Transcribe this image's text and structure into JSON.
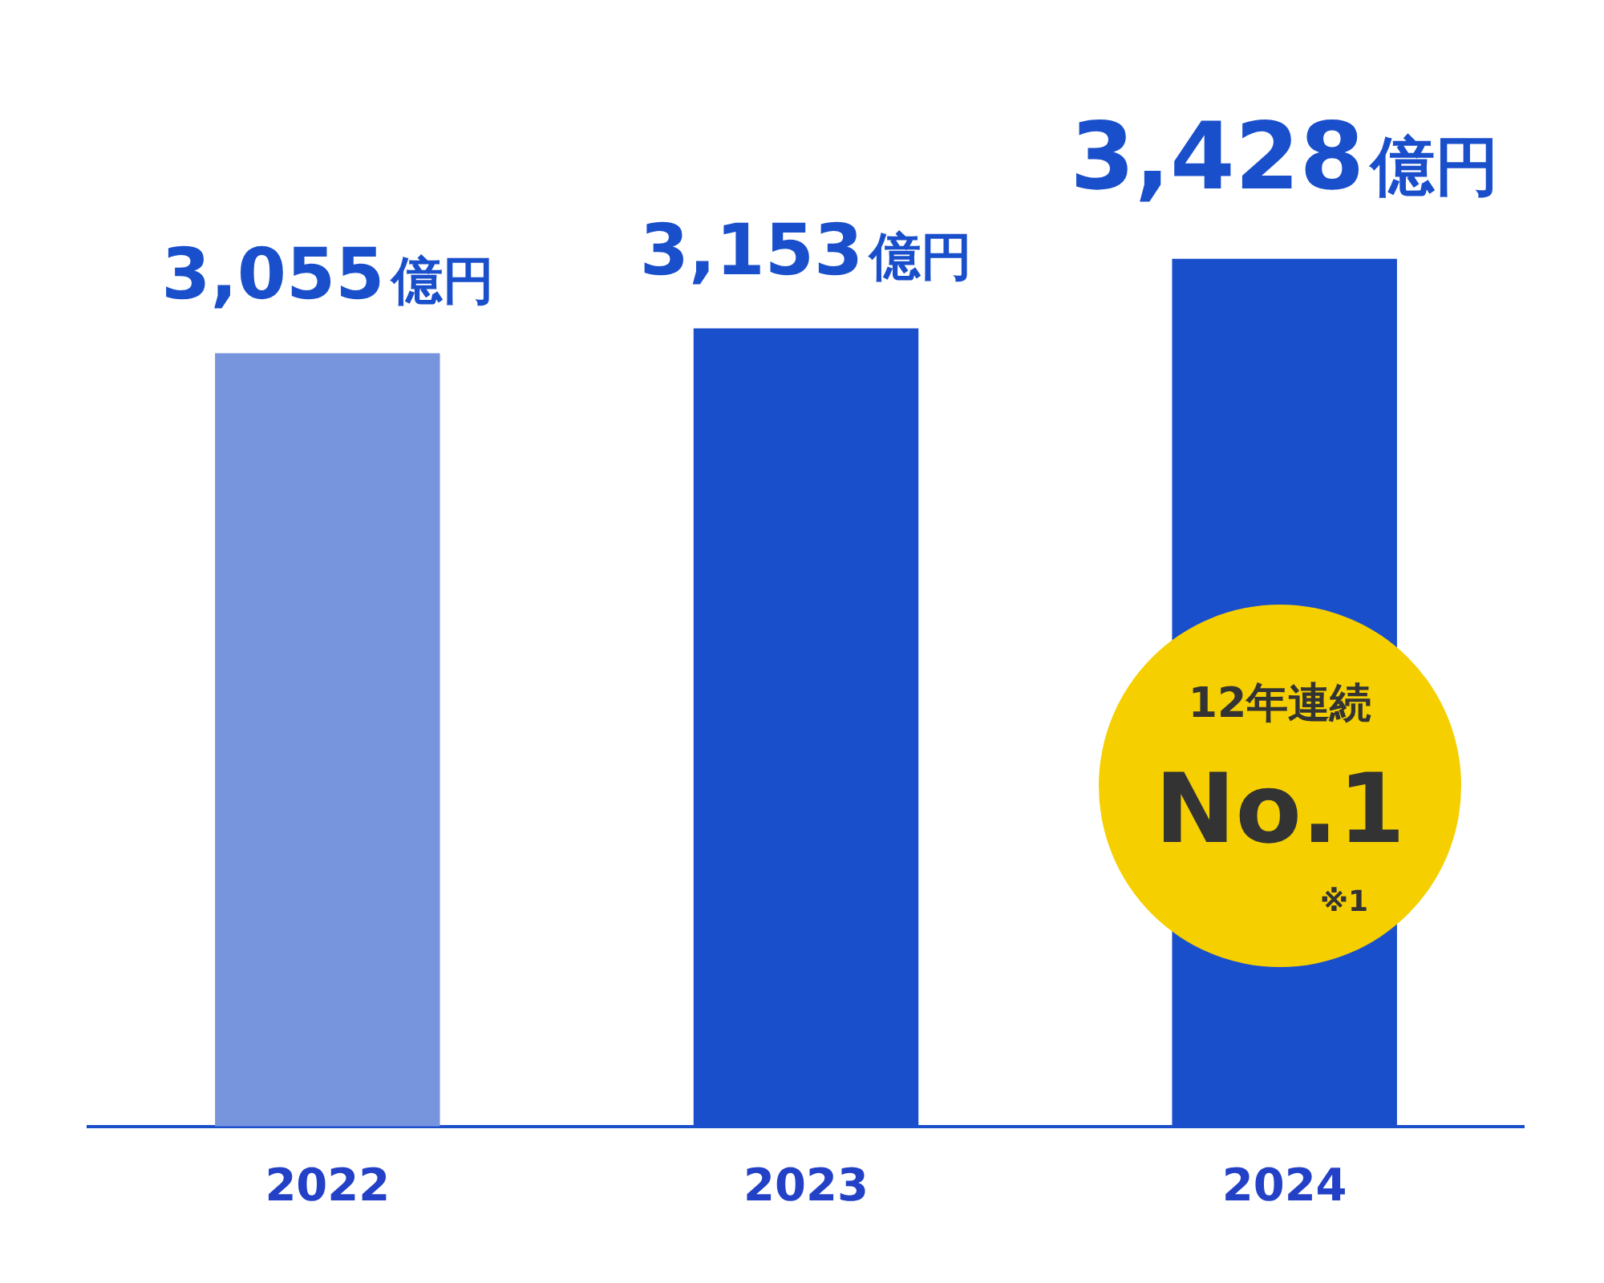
{
  "chart_data": {
    "type": "bar",
    "categories": [
      "2022",
      "2023",
      "2024"
    ],
    "values": [
      3055,
      3153,
      3428
    ],
    "colors": [
      "#7795dd",
      "#1a4fcc",
      "#1a4fcc"
    ],
    "value_labels": [
      "3,055億円",
      "3,153億円",
      "3,428億円"
    ],
    "tick_labels": "x",
    "legend": false,
    "annotations": [
      "12年連続",
      "No.1",
      "※1"
    ]
  }
}
